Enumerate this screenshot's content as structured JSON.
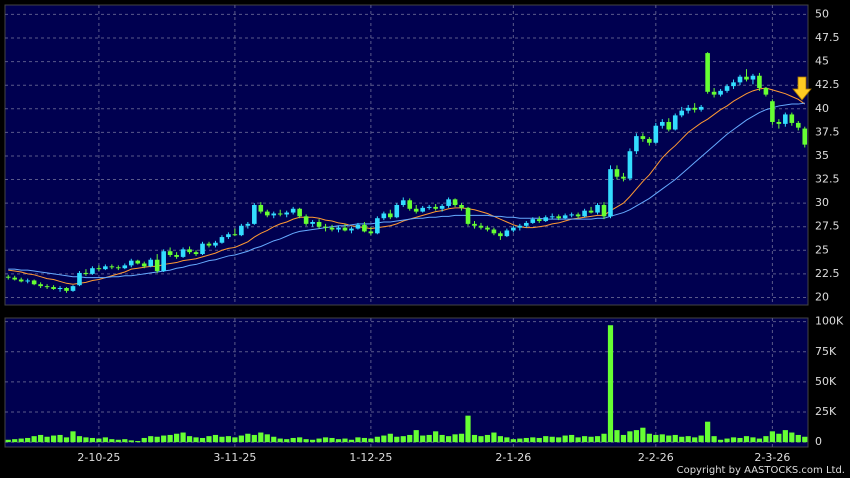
{
  "chart_data": {
    "type": "candlestick",
    "categories": [
      null,
      null,
      null,
      null,
      null,
      null,
      null,
      null,
      null,
      null,
      null,
      null,
      null,
      null,
      "2-10-25",
      null,
      null,
      null,
      null,
      null,
      null,
      null,
      null,
      null,
      null,
      null,
      null,
      null,
      null,
      null,
      null,
      null,
      null,
      null,
      null,
      "3-11-25",
      null,
      null,
      null,
      null,
      null,
      null,
      null,
      null,
      null,
      null,
      null,
      null,
      null,
      null,
      null,
      null,
      null,
      null,
      null,
      null,
      "1-12-25",
      null,
      null,
      null,
      null,
      null,
      null,
      null,
      null,
      null,
      null,
      null,
      null,
      null,
      null,
      null,
      null,
      null,
      null,
      null,
      null,
      null,
      "2-1-26",
      null,
      null,
      null,
      null,
      null,
      null,
      null,
      null,
      null,
      null,
      null,
      null,
      null,
      null,
      null,
      null,
      null,
      null,
      null,
      null,
      null,
      "2-2-26",
      null,
      null,
      null,
      null,
      null,
      null,
      null,
      null,
      null,
      null,
      null,
      null,
      null,
      null,
      null,
      null,
      null,
      "2-3-26",
      null,
      null,
      null,
      null,
      null
    ],
    "candles": [
      [
        22.2,
        22.4,
        21.9,
        22.1
      ],
      [
        22.1,
        22.3,
        21.8,
        21.9
      ],
      [
        21.9,
        22.1,
        21.6,
        21.7
      ],
      [
        21.7,
        22.0,
        21.5,
        21.8
      ],
      [
        21.8,
        21.9,
        21.3,
        21.4
      ],
      [
        21.4,
        21.6,
        21.0,
        21.2
      ],
      [
        21.2,
        21.4,
        20.9,
        21.1
      ],
      [
        21.1,
        21.3,
        20.8,
        20.9
      ],
      [
        20.9,
        21.2,
        20.6,
        21.0
      ],
      [
        21.0,
        21.1,
        20.5,
        20.7
      ],
      [
        20.7,
        21.3,
        20.6,
        21.2
      ],
      [
        21.3,
        22.8,
        21.2,
        22.6
      ],
      [
        22.6,
        23.0,
        22.3,
        22.5
      ],
      [
        22.5,
        23.3,
        22.4,
        23.1
      ],
      [
        23.1,
        23.4,
        22.8,
        23.0
      ],
      [
        23.0,
        23.5,
        22.9,
        23.3
      ],
      [
        23.3,
        23.5,
        23.0,
        23.2
      ],
      [
        23.2,
        23.4,
        22.9,
        23.1
      ],
      [
        23.1,
        23.6,
        23.0,
        23.4
      ],
      [
        23.4,
        24.1,
        23.2,
        23.9
      ],
      [
        23.9,
        24.0,
        23.5,
        23.6
      ],
      [
        23.6,
        23.8,
        23.1,
        23.3
      ],
      [
        23.3,
        24.2,
        23.2,
        24.0
      ],
      [
        24.0,
        24.6,
        22.6,
        22.8
      ],
      [
        22.8,
        25.1,
        22.7,
        24.9
      ],
      [
        24.9,
        25.3,
        24.3,
        24.5
      ],
      [
        24.5,
        24.8,
        24.1,
        24.3
      ],
      [
        24.3,
        25.3,
        24.2,
        25.1
      ],
      [
        25.1,
        25.4,
        24.6,
        24.8
      ],
      [
        24.8,
        25.0,
        24.4,
        24.6
      ],
      [
        24.6,
        25.9,
        24.5,
        25.7
      ],
      [
        25.7,
        25.9,
        25.3,
        25.5
      ],
      [
        25.5,
        26.0,
        25.3,
        25.8
      ],
      [
        25.8,
        26.6,
        25.7,
        26.4
      ],
      [
        26.4,
        26.9,
        26.2,
        26.7
      ],
      [
        26.7,
        27.3,
        26.5,
        26.6
      ],
      [
        26.6,
        27.8,
        26.5,
        27.6
      ],
      [
        27.6,
        28.0,
        27.3,
        27.8
      ],
      [
        27.8,
        30.0,
        27.7,
        29.8
      ],
      [
        29.8,
        30.1,
        28.9,
        29.1
      ],
      [
        29.1,
        29.3,
        28.5,
        28.7
      ],
      [
        28.7,
        29.1,
        28.4,
        28.9
      ],
      [
        28.9,
        29.3,
        28.6,
        28.8
      ],
      [
        28.8,
        29.2,
        28.5,
        29.0
      ],
      [
        29.0,
        29.6,
        28.8,
        29.4
      ],
      [
        29.4,
        29.5,
        28.4,
        28.6
      ],
      [
        28.6,
        28.8,
        27.6,
        27.8
      ],
      [
        27.8,
        28.2,
        27.5,
        28.0
      ],
      [
        28.0,
        28.3,
        27.3,
        27.5
      ],
      [
        27.5,
        27.8,
        27.0,
        27.4
      ],
      [
        27.4,
        27.7,
        27.0,
        27.2
      ],
      [
        27.2,
        27.6,
        26.9,
        27.4
      ],
      [
        27.4,
        27.8,
        27.0,
        27.1
      ],
      [
        27.1,
        27.5,
        26.8,
        27.3
      ],
      [
        27.3,
        27.9,
        27.2,
        27.7
      ],
      [
        27.7,
        28.0,
        26.9,
        27.0
      ],
      [
        27.0,
        27.5,
        26.6,
        26.8
      ],
      [
        26.8,
        28.6,
        26.7,
        28.4
      ],
      [
        28.4,
        29.1,
        28.2,
        28.9
      ],
      [
        28.9,
        29.3,
        28.3,
        28.5
      ],
      [
        28.5,
        30.0,
        28.4,
        29.8
      ],
      [
        29.8,
        30.6,
        29.6,
        30.3
      ],
      [
        30.3,
        30.5,
        29.2,
        29.4
      ],
      [
        29.4,
        29.8,
        28.9,
        29.1
      ],
      [
        29.1,
        29.7,
        29.0,
        29.5
      ],
      [
        29.5,
        29.8,
        29.3,
        29.6
      ],
      [
        29.6,
        29.9,
        29.2,
        29.4
      ],
      [
        29.4,
        29.9,
        29.1,
        29.7
      ],
      [
        29.7,
        30.6,
        29.5,
        30.4
      ],
      [
        30.4,
        30.5,
        29.6,
        29.8
      ],
      [
        29.8,
        30.0,
        29.2,
        29.5
      ],
      [
        29.5,
        29.6,
        27.6,
        27.8
      ],
      [
        27.8,
        28.1,
        27.3,
        27.6
      ],
      [
        27.6,
        27.9,
        27.2,
        27.4
      ],
      [
        27.4,
        27.6,
        27.0,
        27.2
      ],
      [
        27.2,
        27.4,
        26.6,
        26.8
      ],
      [
        26.8,
        27.0,
        26.1,
        26.5
      ],
      [
        26.5,
        27.3,
        26.4,
        27.1
      ],
      [
        27.1,
        27.6,
        26.9,
        27.4
      ],
      [
        27.4,
        27.8,
        27.1,
        27.6
      ],
      [
        27.6,
        28.1,
        27.4,
        27.9
      ],
      [
        27.9,
        28.5,
        27.8,
        28.3
      ],
      [
        28.3,
        28.6,
        27.9,
        28.1
      ],
      [
        28.1,
        28.7,
        28.0,
        28.5
      ],
      [
        28.5,
        28.9,
        28.3,
        28.6
      ],
      [
        28.6,
        28.8,
        28.2,
        28.4
      ],
      [
        28.4,
        28.9,
        28.3,
        28.7
      ],
      [
        28.7,
        29.0,
        28.5,
        28.8
      ],
      [
        28.8,
        29.0,
        28.4,
        28.6
      ],
      [
        28.6,
        29.4,
        28.5,
        29.2
      ],
      [
        29.2,
        29.6,
        28.9,
        29.0
      ],
      [
        29.0,
        30.0,
        28.8,
        29.8
      ],
      [
        29.8,
        30.1,
        28.3,
        28.6
      ],
      [
        28.6,
        34.0,
        28.4,
        33.6
      ],
      [
        33.6,
        34.0,
        32.5,
        32.8
      ],
      [
        32.8,
        33.2,
        32.3,
        32.6
      ],
      [
        32.6,
        35.8,
        32.4,
        35.5
      ],
      [
        35.5,
        37.4,
        35.2,
        37.1
      ],
      [
        37.1,
        37.4,
        36.5,
        36.8
      ],
      [
        36.8,
        37.0,
        36.1,
        36.4
      ],
      [
        36.4,
        38.5,
        36.3,
        38.2
      ],
      [
        38.2,
        38.9,
        37.9,
        38.6
      ],
      [
        38.6,
        39.0,
        37.6,
        37.8
      ],
      [
        37.8,
        39.5,
        37.7,
        39.3
      ],
      [
        39.3,
        40.2,
        39.1,
        39.8
      ],
      [
        39.8,
        40.4,
        39.5,
        40.1
      ],
      [
        40.1,
        40.6,
        39.6,
        39.9
      ],
      [
        39.9,
        40.4,
        39.7,
        40.2
      ],
      [
        45.9,
        46.0,
        41.6,
        41.8
      ],
      [
        41.8,
        42.2,
        41.2,
        41.5
      ],
      [
        41.5,
        42.1,
        41.3,
        41.9
      ],
      [
        41.9,
        42.6,
        41.7,
        42.4
      ],
      [
        42.4,
        43.1,
        42.1,
        42.8
      ],
      [
        42.8,
        43.6,
        42.5,
        43.4
      ],
      [
        43.4,
        44.2,
        42.9,
        43.1
      ],
      [
        43.1,
        43.7,
        42.6,
        43.5
      ],
      [
        43.5,
        43.8,
        41.9,
        42.2
      ],
      [
        42.2,
        42.3,
        41.3,
        41.5
      ],
      [
        40.8,
        41.0,
        38.3,
        38.6
      ],
      [
        38.6,
        38.9,
        37.9,
        38.4
      ],
      [
        38.4,
        39.6,
        38.1,
        39.4
      ],
      [
        39.4,
        39.6,
        38.2,
        38.5
      ],
      [
        38.5,
        38.7,
        37.7,
        38.0
      ],
      [
        37.9,
        38.1,
        35.9,
        36.2
      ]
    ],
    "up_color": "#33ddff",
    "down_color": "#66ff33",
    "ylim": [
      19.2,
      51
    ],
    "yticks": [
      20,
      22.5,
      25,
      27.5,
      30,
      32.5,
      35,
      37.5,
      40,
      42.5,
      45,
      47.5,
      50
    ],
    "grid": true,
    "lines": [
      {
        "color": "#ff9933",
        "values": [
          22.9,
          22.8,
          22.7,
          22.5,
          22.4,
          22.2,
          22.0,
          21.9,
          21.7,
          21.5,
          21.4,
          21.5,
          21.6,
          21.8,
          21.9,
          22.1,
          22.3,
          22.5,
          22.7,
          23.0,
          23.1,
          23.2,
          23.3,
          23.3,
          23.5,
          23.6,
          23.7,
          23.9,
          24.0,
          24.1,
          24.3,
          24.5,
          24.7,
          25.0,
          25.2,
          25.3,
          25.6,
          25.9,
          26.4,
          26.8,
          27.1,
          27.5,
          27.8,
          28.0,
          28.3,
          28.5,
          28.5,
          28.5,
          28.4,
          28.2,
          28.1,
          27.9,
          27.8,
          27.6,
          27.5,
          27.4,
          27.3,
          27.4,
          27.5,
          27.6,
          27.8,
          28.1,
          28.3,
          28.5,
          28.7,
          28.9,
          29.1,
          29.2,
          29.4,
          29.5,
          29.5,
          29.4,
          29.3,
          29.1,
          28.9,
          28.6,
          28.3,
          28.0,
          27.7,
          27.5,
          27.4,
          27.4,
          27.5,
          27.6,
          27.8,
          27.9,
          28.1,
          28.3,
          28.4,
          28.5,
          28.6,
          28.7,
          28.7,
          29.2,
          29.6,
          30.0,
          30.7,
          31.5,
          32.3,
          33.0,
          33.9,
          34.8,
          35.5,
          36.1,
          36.8,
          37.5,
          38.0,
          38.5,
          38.9,
          39.4,
          39.9,
          40.3,
          40.8,
          41.2,
          41.6,
          41.9,
          42.1,
          42.2,
          42.0,
          41.8,
          41.6,
          41.3,
          41.0,
          40.5
        ]
      },
      {
        "color": "#66aaff",
        "values": [
          23.0,
          23.0,
          22.9,
          22.9,
          22.8,
          22.7,
          22.6,
          22.5,
          22.4,
          22.3,
          22.2,
          22.2,
          22.1,
          22.1,
          22.1,
          22.1,
          22.2,
          22.2,
          22.3,
          22.3,
          22.4,
          22.5,
          22.6,
          22.7,
          22.8,
          22.9,
          23.1,
          23.2,
          23.4,
          23.5,
          23.7,
          23.9,
          24.0,
          24.2,
          24.4,
          24.5,
          24.7,
          24.9,
          25.2,
          25.4,
          25.7,
          26.0,
          26.2,
          26.5,
          26.8,
          27.0,
          27.1,
          27.2,
          27.3,
          27.4,
          27.5,
          27.6,
          27.6,
          27.7,
          27.8,
          27.8,
          27.8,
          27.9,
          28.0,
          28.0,
          28.1,
          28.2,
          28.3,
          28.4,
          28.4,
          28.5,
          28.5,
          28.6,
          28.6,
          28.7,
          28.7,
          28.7,
          28.7,
          28.7,
          28.7,
          28.6,
          28.6,
          28.5,
          28.5,
          28.4,
          28.4,
          28.4,
          28.4,
          28.3,
          28.3,
          28.3,
          28.3,
          28.3,
          28.3,
          28.3,
          28.3,
          28.4,
          28.4,
          28.6,
          28.8,
          29.0,
          29.3,
          29.7,
          30.1,
          30.5,
          31.0,
          31.5,
          32.0,
          32.5,
          33.1,
          33.7,
          34.3,
          34.9,
          35.5,
          36.1,
          36.7,
          37.3,
          37.8,
          38.3,
          38.8,
          39.2,
          39.6,
          39.9,
          40.1,
          40.3,
          40.4,
          40.5,
          40.5,
          40.6
        ]
      }
    ],
    "volume": {
      "color": "#66ff33",
      "ylim": [
        -4000,
        103000
      ],
      "yticks": [
        0,
        {
          "value": 25000,
          "label": "25K"
        },
        {
          "value": 50000,
          "label": "50K"
        },
        {
          "value": 75000,
          "label": "75K"
        },
        {
          "value": 100000,
          "label": "100K"
        }
      ],
      "values": [
        2000,
        2500,
        3000,
        3500,
        5000,
        6000,
        4500,
        5500,
        6000,
        4000,
        9000,
        5000,
        4000,
        3500,
        3000,
        4000,
        2500,
        2000,
        2500,
        1500,
        1000,
        3500,
        5000,
        4500,
        5500,
        6000,
        7000,
        8000,
        5000,
        4000,
        3500,
        5000,
        6000,
        4500,
        5000,
        4000,
        5500,
        7000,
        6000,
        8000,
        6500,
        4500,
        3000,
        2500,
        3500,
        4000,
        2500,
        2000,
        3000,
        4000,
        3500,
        2500,
        3000,
        2000,
        4000,
        3500,
        3000,
        4500,
        5500,
        7000,
        4500,
        5000,
        6000,
        10000,
        5500,
        6000,
        9000,
        6000,
        5000,
        6500,
        7000,
        22000,
        6000,
        5000,
        6000,
        8000,
        5000,
        4000,
        2500,
        3000,
        3500,
        4000,
        3500,
        5000,
        4500,
        4000,
        5500,
        6000,
        4000,
        5000,
        4500,
        5000,
        7000,
        97000,
        10000,
        6000,
        9000,
        10000,
        12000,
        7000,
        6000,
        6500,
        5500,
        6000,
        4500,
        5000,
        4000,
        5500,
        17000,
        5000,
        2000,
        3000,
        4000,
        3500,
        5000,
        4000,
        3000,
        5000,
        9000,
        7000,
        10000,
        8000,
        6000,
        4500
      ]
    }
  },
  "footer": "Copyright by AASTOCKS.com Ltd."
}
